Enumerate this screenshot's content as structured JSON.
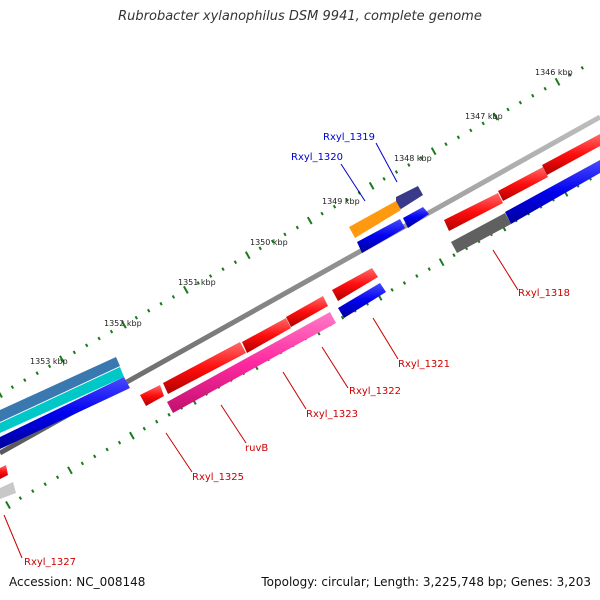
{
  "title": "Rubrobacter xylanophilus DSM 9941, complete genome",
  "footer": {
    "accession": "Accession: NC_008148",
    "summary": "Topology: circular; Length: 3,225,748 bp; Genes: 3,203"
  },
  "scale_labels": [
    "1346 kbp",
    "1347 kbp",
    "1348 kbp",
    "1349 kbp",
    "1350 kbp",
    "1351 kbp",
    "1352 kbp",
    "1353 kbp"
  ],
  "gene_labels": [
    {
      "name": "Rxyl_1319",
      "color": "#0000cc"
    },
    {
      "name": "Rxyl_1320",
      "color": "#0000cc"
    },
    {
      "name": "Rxyl_1318",
      "color": "#cc0000"
    },
    {
      "name": "Rxyl_1321",
      "color": "#cc0000"
    },
    {
      "name": "Rxyl_1322",
      "color": "#cc0000"
    },
    {
      "name": "Rxyl_1323",
      "color": "#cc0000"
    },
    {
      "name": "ruvB",
      "color": "#cc0000"
    },
    {
      "name": "Rxyl_1325",
      "color": "#cc0000"
    },
    {
      "name": "Rxyl_1327",
      "color": "#cc0000"
    }
  ],
  "colors": {
    "backbone": "#8a8a8a",
    "tick": "#1a7a1a",
    "cds_red": "#ff1010",
    "cds_blue": "#0000ee",
    "cds_pink": "#ff2aa0",
    "cds_orange": "#ff9a10",
    "cds_purple": "#3a3a8a",
    "cds_gray": "#606060",
    "cds_teal": "#00c8c8",
    "cds_steel": "#3a78b0",
    "cds_lightgray": "#c8c8c8"
  }
}
